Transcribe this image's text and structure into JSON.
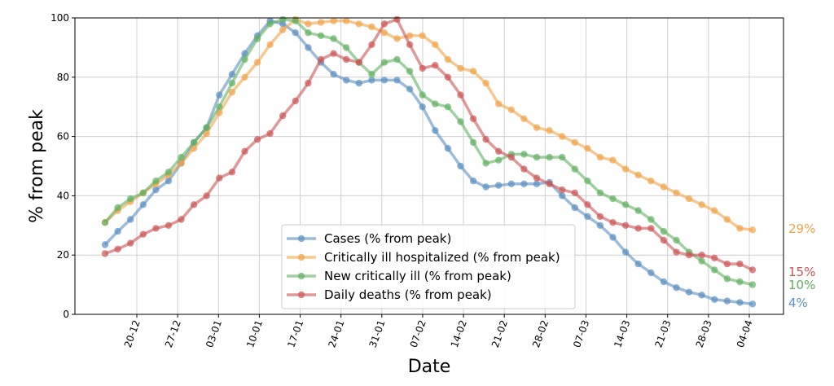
{
  "chart_data": {
    "type": "line",
    "xlabel": "Date",
    "ylabel": "% from peak",
    "ylim": [
      0,
      100
    ],
    "y_ticks": [
      "0",
      "20",
      "40",
      "60",
      "80",
      "100"
    ],
    "x_ticks": [
      "20-12",
      "27-12",
      "03-01",
      "10-01",
      "17-01",
      "24-01",
      "31-01",
      "07-02",
      "14-02",
      "21-02",
      "28-02",
      "07-03",
      "14-03",
      "21-03",
      "28-03",
      "04-04"
    ],
    "x_range_days": [
      0,
      109
    ],
    "grid": true,
    "legend_position": "lower-center",
    "series": [
      {
        "name": "Cases (% from peak)",
        "color": "#5b8fc0",
        "end_label": "4%",
        "points": [
          [
            0,
            23.5
          ],
          [
            3,
            28
          ],
          [
            6,
            32
          ],
          [
            9,
            37
          ],
          [
            12,
            42
          ],
          [
            15,
            45
          ],
          [
            18,
            51
          ],
          [
            21,
            58
          ],
          [
            24,
            63
          ],
          [
            27,
            74
          ],
          [
            30,
            81
          ],
          [
            33,
            88
          ],
          [
            36,
            94
          ],
          [
            39,
            99
          ],
          [
            42,
            98
          ],
          [
            45,
            95
          ],
          [
            48,
            90
          ],
          [
            51,
            85
          ],
          [
            54,
            81
          ],
          [
            57,
            79
          ],
          [
            60,
            78
          ],
          [
            63,
            79
          ],
          [
            66,
            79
          ],
          [
            69,
            79
          ],
          [
            72,
            76
          ],
          [
            75,
            70
          ],
          [
            78,
            62
          ],
          [
            81,
            56
          ],
          [
            84,
            50
          ],
          [
            87,
            45
          ],
          [
            90,
            43
          ],
          [
            93,
            43.5
          ],
          [
            96,
            44
          ],
          [
            99,
            44
          ],
          [
            102,
            44
          ],
          [
            105,
            44.5
          ],
          [
            108,
            40
          ],
          [
            111,
            36
          ],
          [
            114,
            33
          ],
          [
            117,
            30
          ],
          [
            120,
            26
          ],
          [
            123,
            21
          ],
          [
            126,
            17
          ],
          [
            129,
            14
          ],
          [
            132,
            11
          ],
          [
            135,
            9
          ],
          [
            138,
            7.5
          ],
          [
            141,
            6.5
          ],
          [
            144,
            5
          ],
          [
            147,
            4.5
          ],
          [
            150,
            4
          ],
          [
            153,
            3.5
          ]
        ]
      },
      {
        "name": "Critically ill hospitalized (% from peak)",
        "color": "#f0a44a",
        "end_label": "29%",
        "points": [
          [
            0,
            31
          ],
          [
            3,
            35
          ],
          [
            6,
            38
          ],
          [
            9,
            41
          ],
          [
            12,
            44
          ],
          [
            15,
            47
          ],
          [
            18,
            51
          ],
          [
            21,
            56
          ],
          [
            24,
            61
          ],
          [
            27,
            68
          ],
          [
            30,
            75
          ],
          [
            33,
            80
          ],
          [
            36,
            85
          ],
          [
            39,
            91
          ],
          [
            42,
            96
          ],
          [
            45,
            99.5
          ],
          [
            48,
            98
          ],
          [
            51,
            98.5
          ],
          [
            54,
            99
          ],
          [
            57,
            99
          ],
          [
            60,
            98
          ],
          [
            63,
            97
          ],
          [
            66,
            95
          ],
          [
            69,
            93
          ],
          [
            72,
            94
          ],
          [
            75,
            94
          ],
          [
            78,
            91
          ],
          [
            81,
            86
          ],
          [
            84,
            83
          ],
          [
            87,
            82
          ],
          [
            90,
            78
          ],
          [
            93,
            71
          ],
          [
            96,
            69
          ],
          [
            99,
            66
          ],
          [
            102,
            63
          ],
          [
            105,
            62
          ],
          [
            108,
            60
          ],
          [
            111,
            58
          ],
          [
            114,
            56
          ],
          [
            117,
            53
          ],
          [
            120,
            52
          ],
          [
            123,
            49
          ],
          [
            126,
            47
          ],
          [
            129,
            45
          ],
          [
            132,
            43
          ],
          [
            135,
            41
          ],
          [
            138,
            39
          ],
          [
            141,
            37
          ],
          [
            144,
            35
          ],
          [
            147,
            32
          ],
          [
            150,
            29
          ],
          [
            153,
            28.5
          ]
        ]
      },
      {
        "name": "New critically ill (% from peak)",
        "color": "#62b062",
        "end_label": "10%",
        "points": [
          [
            0,
            31
          ],
          [
            3,
            36
          ],
          [
            6,
            39
          ],
          [
            9,
            41
          ],
          [
            12,
            45
          ],
          [
            15,
            48
          ],
          [
            18,
            53
          ],
          [
            21,
            58
          ],
          [
            24,
            63
          ],
          [
            27,
            70
          ],
          [
            30,
            78
          ],
          [
            33,
            86
          ],
          [
            36,
            93
          ],
          [
            39,
            98
          ],
          [
            42,
            99.5
          ],
          [
            45,
            99
          ],
          [
            48,
            95
          ],
          [
            51,
            94
          ],
          [
            54,
            93
          ],
          [
            57,
            90
          ],
          [
            60,
            85
          ],
          [
            63,
            81
          ],
          [
            66,
            85
          ],
          [
            69,
            86
          ],
          [
            72,
            82
          ],
          [
            75,
            74
          ],
          [
            78,
            71
          ],
          [
            81,
            70
          ],
          [
            84,
            65
          ],
          [
            87,
            58
          ],
          [
            90,
            51
          ],
          [
            93,
            52
          ],
          [
            96,
            54
          ],
          [
            99,
            54
          ],
          [
            102,
            53
          ],
          [
            105,
            53
          ],
          [
            108,
            53
          ],
          [
            111,
            49
          ],
          [
            114,
            45
          ],
          [
            117,
            41
          ],
          [
            120,
            39
          ],
          [
            123,
            37
          ],
          [
            126,
            35
          ],
          [
            129,
            32
          ],
          [
            132,
            28
          ],
          [
            135,
            25
          ],
          [
            138,
            21
          ],
          [
            141,
            18
          ],
          [
            144,
            15
          ],
          [
            147,
            12
          ],
          [
            150,
            11
          ],
          [
            153,
            10
          ]
        ]
      },
      {
        "name": "Daily deaths (% from peak)",
        "color": "#cc5555",
        "end_label": "15%",
        "points": [
          [
            0,
            20.5
          ],
          [
            3,
            22
          ],
          [
            6,
            24
          ],
          [
            9,
            27
          ],
          [
            12,
            29
          ],
          [
            15,
            30
          ],
          [
            18,
            32
          ],
          [
            21,
            37
          ],
          [
            24,
            40
          ],
          [
            27,
            46
          ],
          [
            30,
            48
          ],
          [
            33,
            55
          ],
          [
            36,
            59
          ],
          [
            39,
            61
          ],
          [
            42,
            67
          ],
          [
            45,
            72
          ],
          [
            48,
            78
          ],
          [
            51,
            86
          ],
          [
            54,
            88
          ],
          [
            57,
            86
          ],
          [
            60,
            85
          ],
          [
            63,
            91
          ],
          [
            66,
            98
          ],
          [
            69,
            99.5
          ],
          [
            72,
            91
          ],
          [
            75,
            83
          ],
          [
            78,
            84
          ],
          [
            81,
            80
          ],
          [
            84,
            74
          ],
          [
            87,
            66
          ],
          [
            90,
            59
          ],
          [
            93,
            55
          ],
          [
            96,
            53
          ],
          [
            99,
            49
          ],
          [
            102,
            46
          ],
          [
            105,
            44
          ],
          [
            108,
            42
          ],
          [
            111,
            41
          ],
          [
            114,
            37
          ],
          [
            117,
            33
          ],
          [
            120,
            31
          ],
          [
            123,
            30
          ],
          [
            126,
            29
          ],
          [
            129,
            29
          ],
          [
            132,
            25
          ],
          [
            135,
            21
          ],
          [
            138,
            20
          ],
          [
            141,
            20
          ],
          [
            144,
            19
          ],
          [
            147,
            17
          ],
          [
            150,
            17
          ],
          [
            153,
            15
          ]
        ]
      }
    ]
  }
}
